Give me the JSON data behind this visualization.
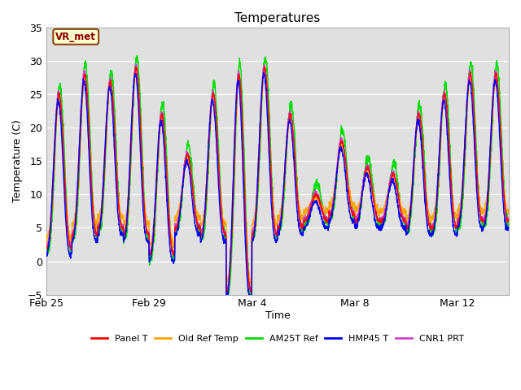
{
  "title": "Temperatures",
  "xlabel": "Time",
  "ylabel": "Temperature (C)",
  "ylim": [
    -5,
    35
  ],
  "yticks": [
    -5,
    0,
    5,
    10,
    15,
    20,
    25,
    30,
    35
  ],
  "annotation_text": "VR_met",
  "bg_color": "#e0e0e0",
  "legend": [
    {
      "label": "Panel T",
      "color": "#ff0000"
    },
    {
      "label": "Old Ref Temp",
      "color": "#ffa500"
    },
    {
      "label": "AM25T Ref",
      "color": "#00dd00"
    },
    {
      "label": "HMP45 T",
      "color": "#0000ff"
    },
    {
      "label": "CNR1 PRT",
      "color": "#cc44cc"
    }
  ],
  "xtick_labels": [
    "Feb 25",
    "Feb 29",
    "Mar 4",
    "Mar 8",
    "Mar 12"
  ],
  "n_days": 18,
  "points_per_day": 144,
  "line_width": 1.0,
  "daily_min": [
    2,
    4,
    5,
    4,
    1,
    5,
    4,
    5,
    4,
    5,
    6,
    7,
    6,
    6,
    5,
    5,
    6,
    6
  ],
  "daily_max": [
    25,
    28,
    27,
    29,
    22,
    16,
    25,
    28,
    29,
    22,
    10,
    18,
    14,
    13,
    22,
    25,
    28,
    28
  ],
  "dip_day": 7,
  "dip_min": -4.5,
  "series_offsets": [
    {
      "phase": 0.0,
      "min_off": 0.0,
      "max_off": 0.0,
      "noise": 0.15
    },
    {
      "phase": 0.05,
      "min_off": 1.5,
      "max_off": -0.5,
      "noise": 0.3
    },
    {
      "phase": -0.15,
      "min_off": -0.5,
      "max_off": 1.5,
      "noise": 0.4
    },
    {
      "phase": 0.2,
      "min_off": -1.0,
      "max_off": -1.0,
      "noise": 0.2
    },
    {
      "phase": 0.1,
      "min_off": 0.3,
      "max_off": 0.3,
      "noise": 0.2
    }
  ]
}
